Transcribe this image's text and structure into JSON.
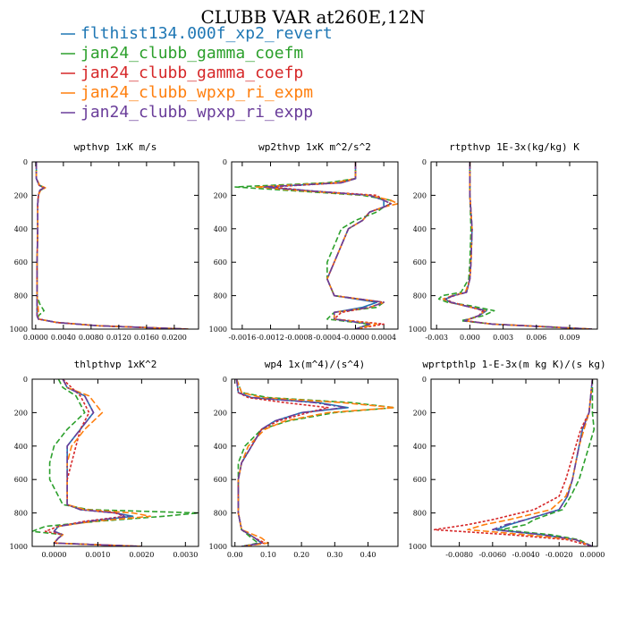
{
  "figure_title": "CLUBB VAR at260E,12N",
  "legend": [
    {
      "label": "flthist134.000f_xp2_revert",
      "color": "#1f77b4"
    },
    {
      "label": "jan24_clubb_gamma_coefm",
      "color": "#2ca02c"
    },
    {
      "label": "jan24_clubb_gamma_coefp",
      "color": "#d62728"
    },
    {
      "label": "jan24_clubb_wpxp_ri_expm",
      "color": "#ff7f0e"
    },
    {
      "label": "jan24_clubb_wpxp_ri_expp",
      "color": "#6a3d9a"
    }
  ],
  "chart_data": [
    {
      "type": "line",
      "title": "wpthvp  1xK m/s",
      "xlim": [
        -0.0005,
        0.0235
      ],
      "ylim": [
        1000,
        0
      ],
      "xticks": [
        "0.0000",
        "0.0040",
        "0.0080",
        "0.0120",
        "0.0160",
        "0.0200"
      ],
      "xtick_values": [
        0.0,
        0.004,
        0.008,
        0.012,
        0.016,
        0.02
      ],
      "yticks": [
        "0",
        "200",
        "400",
        "600",
        "800",
        "1000"
      ],
      "ytick_values": [
        0,
        200,
        400,
        600,
        800,
        1000
      ],
      "y": [
        0,
        100,
        140,
        155,
        170,
        200,
        250,
        400,
        600,
        800,
        850,
        890,
        920,
        940,
        960,
        980,
        1000
      ],
      "series": [
        {
          "values": [
            0.0001,
            0.0001,
            0.0005,
            0.0012,
            0.0006,
            0.0004,
            0.0003,
            0.0003,
            0.0002,
            0.0002,
            0.0002,
            0.0002,
            0.0002,
            0.0004,
            0.003,
            0.009,
            0.022
          ]
        },
        {
          "values": [
            0.0001,
            0.0001,
            0.0006,
            0.0013,
            0.0007,
            0.0004,
            0.0003,
            0.0003,
            0.0002,
            0.0002,
            0.0006,
            0.0012,
            0.0004,
            0.0004,
            0.003,
            0.009,
            0.022
          ]
        },
        {
          "values": [
            0.0001,
            0.0001,
            0.0005,
            0.0012,
            0.0006,
            0.0004,
            0.0003,
            0.0003,
            0.0002,
            0.0002,
            0.0002,
            0.0002,
            0.0002,
            0.0004,
            0.003,
            0.009,
            0.022
          ]
        },
        {
          "values": [
            0.0001,
            0.0001,
            0.0006,
            0.0014,
            0.0007,
            0.0004,
            0.0003,
            0.0003,
            0.0002,
            0.0002,
            0.0003,
            0.0004,
            0.0003,
            0.0004,
            0.003,
            0.009,
            0.022
          ]
        },
        {
          "values": [
            0.0001,
            0.0001,
            0.0005,
            0.0012,
            0.0006,
            0.0004,
            0.0003,
            0.0003,
            0.0002,
            0.0002,
            0.0002,
            0.0002,
            0.0002,
            0.0004,
            0.003,
            0.009,
            0.022
          ]
        }
      ]
    },
    {
      "type": "line",
      "title": "wp2thvp  1xK m^2/s^2",
      "xlim": [
        -0.00175,
        0.0006
      ],
      "ylim": [
        1000,
        0
      ],
      "xticks": [
        "-0.0016",
        "-0.0012",
        "-0.0008",
        "-0.0004",
        "-0.0000",
        "0.0004"
      ],
      "xtick_values": [
        -0.0016,
        -0.0012,
        -0.0008,
        -0.0004,
        0.0,
        0.0004
      ],
      "yticks": [
        "0",
        "200",
        "400",
        "600",
        "800",
        "1000"
      ],
      "ytick_values": [
        0,
        200,
        400,
        600,
        800,
        1000
      ],
      "y": [
        0,
        100,
        125,
        150,
        175,
        200,
        230,
        250,
        270,
        300,
        350,
        400,
        500,
        600,
        700,
        800,
        840,
        870,
        900,
        940,
        970,
        1000
      ],
      "series": [
        {
          "values": [
            0.0,
            0.0,
            -0.0002,
            -0.0013,
            -0.0006,
            0.0002,
            0.0004,
            0.0004,
            0.0004,
            0.0002,
            0.0001,
            -0.0001,
            -0.0002,
            -0.0003,
            -0.0004,
            -0.0003,
            0.0003,
            0.0001,
            -0.0003,
            -0.0003,
            0.0002,
            0.0
          ]
        },
        {
          "values": [
            0.0,
            0.0,
            -0.0004,
            -0.0017,
            -0.0008,
            0.0001,
            0.0005,
            0.0005,
            0.0004,
            0.0003,
            0.0,
            -0.0002,
            -0.0003,
            -0.0004,
            -0.0004,
            -0.0003,
            0.0004,
            0.0003,
            -0.0003,
            -0.0004,
            0.0002,
            0.0
          ]
        },
        {
          "values": [
            0.0,
            0.0,
            -0.0002,
            -0.0012,
            -0.0006,
            0.0003,
            0.0004,
            0.0005,
            0.0004,
            0.0002,
            0.0001,
            -0.0001,
            -0.0002,
            -0.0003,
            -0.0004,
            -0.0003,
            0.0004,
            0.0002,
            -0.0002,
            -0.0003,
            0.0004,
            0.0
          ]
        },
        {
          "values": [
            0.0,
            0.0,
            -0.0003,
            -0.0014,
            -0.0007,
            0.0002,
            0.0005,
            0.0006,
            0.0004,
            0.0002,
            0.0001,
            -0.0001,
            -0.0002,
            -0.0003,
            -0.0004,
            -0.0003,
            0.0004,
            0.0002,
            -0.0003,
            -0.0003,
            0.0003,
            0.0
          ]
        },
        {
          "values": [
            0.0,
            0.0,
            -0.0002,
            -0.0013,
            -0.0006,
            0.0002,
            0.0004,
            0.0005,
            0.0004,
            0.0002,
            0.0001,
            -0.0001,
            -0.0002,
            -0.0003,
            -0.0004,
            -0.0003,
            0.0004,
            0.0002,
            -0.0003,
            -0.0003,
            0.0002,
            0.0
          ]
        }
      ]
    },
    {
      "type": "line",
      "title": "rtpthvp  1E-3x(kg/kg) K",
      "xlim": [
        -0.0035,
        0.0115
      ],
      "ylim": [
        1000,
        0
      ],
      "xticks": [
        "-0.003",
        "0.000",
        "0.003",
        "0.006",
        "0.009"
      ],
      "xtick_values": [
        -0.003,
        0.0,
        0.003,
        0.006,
        0.009
      ],
      "yticks": [
        "0",
        "200",
        "400",
        "600",
        "800",
        "1000"
      ],
      "ytick_values": [
        0,
        200,
        400,
        600,
        800,
        1000
      ],
      "y": [
        0,
        200,
        400,
        600,
        700,
        780,
        800,
        820,
        840,
        860,
        890,
        920,
        950,
        970,
        1000
      ],
      "series": [
        {
          "values": [
            0.0,
            0.0,
            0.0002,
            0.0001,
            0.0,
            -0.0003,
            -0.0015,
            -0.0022,
            -0.0018,
            -0.0005,
            0.0015,
            0.0008,
            -0.0005,
            0.002,
            0.011
          ]
        },
        {
          "values": [
            0.0,
            0.0,
            0.0001,
            0.0,
            -0.0001,
            -0.0008,
            -0.0025,
            -0.0028,
            -0.002,
            0.0,
            0.0022,
            0.0012,
            -0.0008,
            0.002,
            0.011
          ]
        },
        {
          "values": [
            0.0,
            0.0,
            0.0002,
            0.0001,
            0.0,
            -0.0003,
            -0.0014,
            -0.0022,
            -0.0016,
            -0.0004,
            0.0012,
            0.0008,
            -0.0004,
            0.002,
            0.011
          ]
        },
        {
          "values": [
            0.0,
            0.0,
            0.0002,
            0.0001,
            0.0,
            -0.0004,
            -0.0016,
            -0.0024,
            -0.0018,
            -0.0005,
            0.0014,
            0.0008,
            -0.0005,
            0.002,
            0.011
          ]
        },
        {
          "values": [
            0.0,
            0.0,
            0.0002,
            0.0001,
            0.0,
            -0.0003,
            -0.0015,
            -0.0022,
            -0.0017,
            -0.0005,
            0.0014,
            0.0008,
            -0.0005,
            0.002,
            0.011
          ]
        }
      ]
    },
    {
      "type": "line",
      "title": "thlpthvp  1xK^2",
      "xlim": [
        -0.0005,
        0.0033
      ],
      "ylim": [
        1000,
        0
      ],
      "xticks": [
        "0.0000",
        "0.0010",
        "0.0020",
        "0.0030"
      ],
      "xtick_values": [
        0.0,
        0.001,
        0.002,
        0.003
      ],
      "yticks": [
        "0",
        "200",
        "400",
        "600",
        "800",
        "1000"
      ],
      "ytick_values": [
        0,
        200,
        400,
        600,
        800,
        1000
      ],
      "y": [
        0,
        50,
        100,
        200,
        300,
        400,
        500,
        600,
        700,
        750,
        780,
        800,
        820,
        850,
        880,
        910,
        930,
        950,
        980,
        1000
      ],
      "series": [
        {
          "values": [
            0.0002,
            0.0003,
            0.0007,
            0.0009,
            0.0006,
            0.0003,
            0.0003,
            0.0003,
            0.0003,
            0.0003,
            0.0006,
            0.0014,
            0.0018,
            0.0008,
            0.0001,
            0.0,
            0.0002,
            0.0001,
            0.0,
            0.002
          ]
        },
        {
          "values": [
            0.0001,
            0.0002,
            0.0005,
            0.0007,
            0.0003,
            0.0,
            -0.0001,
            -0.0001,
            0.0001,
            0.0002,
            0.0008,
            0.0033,
            0.0025,
            0.001,
            -0.0002,
            -0.0005,
            0.0002,
            0.0001,
            0.0,
            0.002
          ]
        },
        {
          "values": [
            0.0002,
            0.0004,
            0.0006,
            0.0008,
            0.0006,
            0.0005,
            0.0004,
            0.0003,
            0.0003,
            0.0003,
            0.0006,
            0.0014,
            0.0016,
            0.0007,
            0.0001,
            -0.0002,
            0.0002,
            0.0001,
            0.0,
            0.002
          ]
        },
        {
          "values": [
            0.0002,
            0.0003,
            0.0008,
            0.0011,
            0.0007,
            0.0004,
            0.0003,
            0.0003,
            0.0003,
            0.0003,
            0.0007,
            0.0018,
            0.0022,
            0.0009,
            0.0001,
            0.0,
            0.0002,
            0.0001,
            0.0,
            0.002
          ]
        },
        {
          "values": [
            0.0002,
            0.0003,
            0.0007,
            0.0009,
            0.0006,
            0.0003,
            0.0003,
            0.0003,
            0.0003,
            0.0003,
            0.0006,
            0.0014,
            0.0017,
            0.0008,
            0.0001,
            0.0,
            0.0002,
            0.0001,
            0.0,
            0.002
          ]
        }
      ]
    },
    {
      "type": "line",
      "title": "wp4  1x(m^4)/(s^4)",
      "xlim": [
        -0.01,
        0.49
      ],
      "ylim": [
        1000,
        0
      ],
      "xticks": [
        "0.00",
        "0.10",
        "0.20",
        "0.30",
        "0.40"
      ],
      "xtick_values": [
        0.0,
        0.1,
        0.2,
        0.3,
        0.4
      ],
      "yticks": [
        "0",
        "200",
        "400",
        "600",
        "800",
        "1000"
      ],
      "ytick_values": [
        0,
        200,
        400,
        600,
        800,
        1000
      ],
      "y": [
        0,
        80,
        110,
        140,
        170,
        200,
        250,
        300,
        400,
        500,
        600,
        700,
        800,
        900,
        950,
        980,
        1000
      ],
      "series": [
        {
          "values": [
            0.005,
            0.01,
            0.05,
            0.25,
            0.34,
            0.2,
            0.12,
            0.08,
            0.05,
            0.02,
            0.01,
            0.01,
            0.01,
            0.02,
            0.06,
            0.08,
            0.02
          ]
        },
        {
          "values": [
            0.005,
            0.02,
            0.1,
            0.35,
            0.48,
            0.3,
            0.16,
            0.08,
            0.03,
            0.01,
            0.01,
            0.01,
            0.01,
            0.02,
            0.05,
            0.07,
            0.02
          ]
        },
        {
          "values": [
            0.005,
            0.01,
            0.04,
            0.15,
            0.28,
            0.22,
            0.13,
            0.08,
            0.05,
            0.02,
            0.01,
            0.01,
            0.01,
            0.02,
            0.06,
            0.09,
            0.02
          ]
        },
        {
          "values": [
            0.005,
            0.02,
            0.08,
            0.32,
            0.48,
            0.28,
            0.15,
            0.09,
            0.04,
            0.02,
            0.01,
            0.01,
            0.01,
            0.02,
            0.08,
            0.1,
            0.02
          ]
        },
        {
          "values": [
            0.005,
            0.01,
            0.05,
            0.24,
            0.33,
            0.2,
            0.12,
            0.08,
            0.05,
            0.02,
            0.01,
            0.01,
            0.01,
            0.02,
            0.06,
            0.08,
            0.02
          ]
        }
      ]
    },
    {
      "type": "line",
      "title": "wprtpthlp  1-E-3x(m kg K)/(s kg)",
      "xlim": [
        -0.0097,
        0.0003
      ],
      "ylim": [
        1000,
        0
      ],
      "xticks": [
        "-0.0080",
        "-0.0060",
        "-0.0040",
        "-0.0020",
        "0.0000"
      ],
      "xtick_values": [
        -0.008,
        -0.006,
        -0.004,
        -0.002,
        0.0
      ],
      "yticks": [
        "0",
        "200",
        "400",
        "600",
        "800",
        "1000"
      ],
      "ytick_values": [
        0,
        200,
        400,
        600,
        800,
        1000
      ],
      "y": [
        0,
        200,
        300,
        400,
        500,
        600,
        700,
        780,
        840,
        870,
        900,
        930,
        960,
        1000
      ],
      "series": [
        {
          "values": [
            0.0,
            -0.0002,
            -0.0006,
            -0.0008,
            -0.001,
            -0.0012,
            -0.0015,
            -0.002,
            -0.004,
            -0.005,
            -0.0058,
            -0.003,
            -0.001,
            0.0
          ]
        },
        {
          "values": [
            0.0,
            0.0,
            0.0001,
            -0.0002,
            -0.0005,
            -0.0008,
            -0.0013,
            -0.0018,
            -0.0035,
            -0.004,
            -0.0055,
            -0.0025,
            -0.0008,
            0.0
          ]
        },
        {
          "values": [
            0.0,
            -0.0002,
            -0.0007,
            -0.001,
            -0.0013,
            -0.0016,
            -0.002,
            -0.0035,
            -0.006,
            -0.0075,
            -0.0095,
            -0.005,
            -0.0015,
            0.0
          ]
        },
        {
          "values": [
            0.0,
            -0.0002,
            -0.0005,
            -0.0008,
            -0.001,
            -0.0012,
            -0.0016,
            -0.0025,
            -0.005,
            -0.0065,
            -0.0075,
            -0.004,
            -0.001,
            0.0
          ]
        },
        {
          "values": [
            0.0,
            -0.0002,
            -0.0006,
            -0.0008,
            -0.001,
            -0.0012,
            -0.0015,
            -0.002,
            -0.004,
            -0.0052,
            -0.006,
            -0.003,
            -0.001,
            0.0
          ]
        }
      ]
    }
  ]
}
